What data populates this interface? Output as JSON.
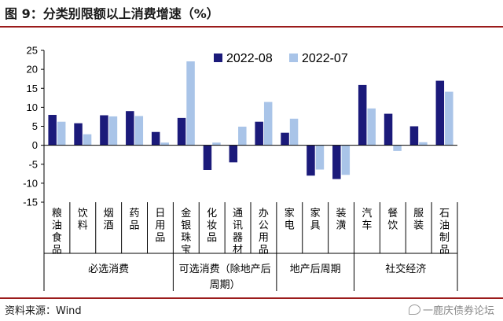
{
  "header": {
    "title": "图 9：分类别限额以上消费增速（%）"
  },
  "footer": {
    "source": "资料来源：Wind",
    "watermark": "一鹿庆债券论坛",
    "watermark_icon": "chat-bubble-icon"
  },
  "chart_data": {
    "type": "bar",
    "title": "图 9：分类别限额以上消费增速（%）",
    "ylim": [
      -15,
      25
    ],
    "yticks": [
      25,
      20,
      15,
      10,
      5,
      0,
      -5,
      -10,
      -15
    ],
    "grid": false,
    "legend_position": "top",
    "categories": [
      "粮油食品",
      "饮料",
      "烟酒",
      "药品",
      "日用品",
      "金银珠宝",
      "化妆品",
      "通讯器材",
      "办公用品",
      "家电",
      "家具",
      "装潢",
      "汽车",
      "餐饮",
      "服装",
      "石油制品"
    ],
    "series": [
      {
        "name": "2022-08",
        "color": "#1b1a7a",
        "values": [
          8.0,
          5.8,
          7.9,
          9.0,
          3.5,
          7.2,
          -6.5,
          -4.5,
          6.2,
          3.3,
          -8.0,
          -8.9,
          15.9,
          8.3,
          5.0,
          17.0
        ]
      },
      {
        "name": "2022-07",
        "color": "#a9c4e8",
        "values": [
          6.2,
          2.9,
          7.6,
          7.7,
          0.7,
          22.1,
          0.7,
          4.9,
          11.4,
          7.0,
          -6.4,
          -7.8,
          9.7,
          -1.5,
          0.8,
          14.1
        ]
      }
    ],
    "groups": [
      {
        "label": "必选消费",
        "start": 0,
        "end": 4
      },
      {
        "label": "可选消费（除地产后周期）",
        "line1": "可选消费（除地产后",
        "line2": "周期）",
        "start": 5,
        "end": 8
      },
      {
        "label": "地产后周期",
        "start": 9,
        "end": 11
      },
      {
        "label": "社交经济",
        "start": 12,
        "end": 15
      }
    ]
  }
}
